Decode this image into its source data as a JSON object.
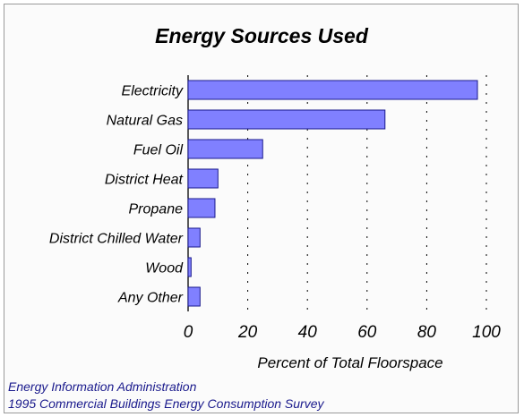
{
  "chart_data": {
    "type": "bar",
    "orientation": "horizontal",
    "title": "Energy Sources Used",
    "xlabel": "Percent of Total Floorspace",
    "ylabel": "",
    "categories": [
      "Electricity",
      "Natural Gas",
      "Fuel Oil",
      "District Heat",
      "Propane",
      "District Chilled Water",
      "Wood",
      "Any Other"
    ],
    "values": [
      97,
      66,
      25,
      10,
      9,
      4,
      1,
      4
    ],
    "xlim": [
      0,
      100
    ],
    "xticks": [
      0,
      20,
      40,
      60,
      80,
      100
    ],
    "grid": "vertical dotted",
    "bar_color": "#8080ff",
    "bar_edge_color": "#1a1a8c"
  },
  "source": {
    "line1": "Energy Information Administration",
    "line2": "1995 Commercial Buildings Energy Consumption Survey"
  }
}
